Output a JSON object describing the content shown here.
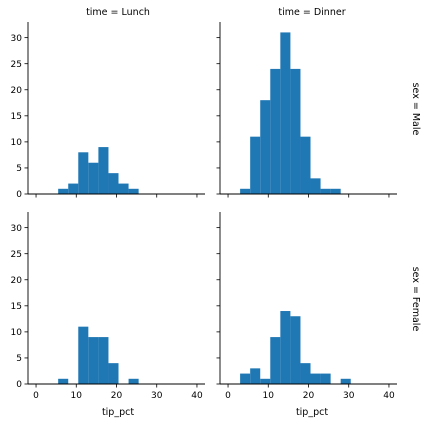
{
  "chart_data": {
    "type": "bar",
    "xlabel": "tip_pct",
    "ylabel": "",
    "xlim": [
      -2,
      42
    ],
    "ylim": [
      0,
      33
    ],
    "x_ticks": [
      0,
      10,
      20,
      30,
      40
    ],
    "y_ticks": [
      0,
      5,
      10,
      15,
      20,
      25,
      30
    ],
    "bar_color": "#1f77b4",
    "grid": false,
    "column_titles": [
      "time = Lunch",
      "time = Dinner"
    ],
    "row_titles": [
      "sex = Male",
      "sex = Female"
    ],
    "panels": [
      {
        "col_title": "time = Lunch",
        "row_title": "sex = Male",
        "bins": [
          {
            "x0": 5.5,
            "x1": 8.0,
            "value": 1
          },
          {
            "x0": 8.0,
            "x1": 10.5,
            "value": 2
          },
          {
            "x0": 10.5,
            "x1": 13.0,
            "value": 8
          },
          {
            "x0": 13.0,
            "x1": 15.5,
            "value": 6
          },
          {
            "x0": 15.5,
            "x1": 18.0,
            "value": 9
          },
          {
            "x0": 18.0,
            "x1": 20.5,
            "value": 4
          },
          {
            "x0": 20.5,
            "x1": 23.0,
            "value": 2
          },
          {
            "x0": 23.0,
            "x1": 25.5,
            "value": 1
          }
        ]
      },
      {
        "col_title": "time = Dinner",
        "row_title": "sex = Male",
        "bins": [
          {
            "x0": 3.0,
            "x1": 5.5,
            "value": 1
          },
          {
            "x0": 5.5,
            "x1": 8.0,
            "value": 11
          },
          {
            "x0": 8.0,
            "x1": 10.5,
            "value": 18
          },
          {
            "x0": 10.5,
            "x1": 13.0,
            "value": 24
          },
          {
            "x0": 13.0,
            "x1": 15.5,
            "value": 31
          },
          {
            "x0": 15.5,
            "x1": 18.0,
            "value": 24
          },
          {
            "x0": 18.0,
            "x1": 20.5,
            "value": 11
          },
          {
            "x0": 20.5,
            "x1": 23.0,
            "value": 3
          },
          {
            "x0": 23.0,
            "x1": 25.5,
            "value": 1
          },
          {
            "x0": 25.5,
            "x1": 28.0,
            "value": 1
          }
        ]
      },
      {
        "col_title": "time = Lunch",
        "row_title": "sex = Female",
        "bins": [
          {
            "x0": 5.5,
            "x1": 8.0,
            "value": 1
          },
          {
            "x0": 8.0,
            "x1": 10.5,
            "value": 0
          },
          {
            "x0": 10.5,
            "x1": 13.0,
            "value": 11
          },
          {
            "x0": 13.0,
            "x1": 15.5,
            "value": 9
          },
          {
            "x0": 15.5,
            "x1": 18.0,
            "value": 9
          },
          {
            "x0": 18.0,
            "x1": 20.5,
            "value": 4
          },
          {
            "x0": 20.5,
            "x1": 23.0,
            "value": 0
          },
          {
            "x0": 23.0,
            "x1": 25.5,
            "value": 1
          }
        ]
      },
      {
        "col_title": "time = Dinner",
        "row_title": "sex = Female",
        "bins": [
          {
            "x0": 3.0,
            "x1": 5.5,
            "value": 2
          },
          {
            "x0": 5.5,
            "x1": 8.0,
            "value": 3
          },
          {
            "x0": 8.0,
            "x1": 10.5,
            "value": 1
          },
          {
            "x0": 10.5,
            "x1": 13.0,
            "value": 9
          },
          {
            "x0": 13.0,
            "x1": 15.5,
            "value": 14
          },
          {
            "x0": 15.5,
            "x1": 18.0,
            "value": 13
          },
          {
            "x0": 18.0,
            "x1": 20.5,
            "value": 4
          },
          {
            "x0": 20.5,
            "x1": 23.0,
            "value": 2
          },
          {
            "x0": 23.0,
            "x1": 25.5,
            "value": 2
          },
          {
            "x0": 25.5,
            "x1": 28.0,
            "value": 0
          },
          {
            "x0": 28.0,
            "x1": 30.5,
            "value": 1
          }
        ]
      }
    ]
  }
}
